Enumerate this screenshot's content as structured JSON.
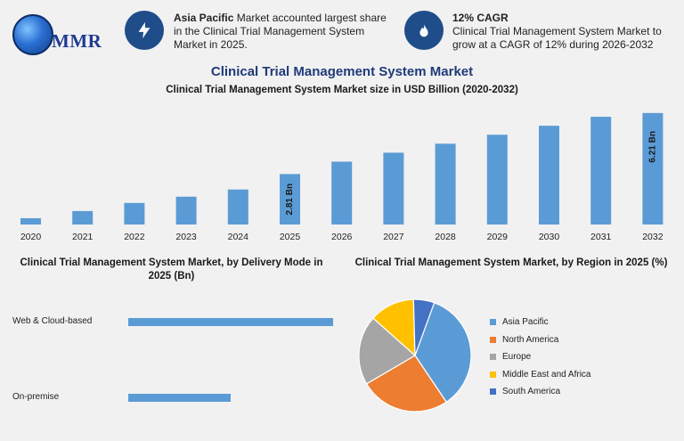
{
  "header": {
    "logo_text": "MMR",
    "info1": {
      "bold": "Asia Pacific",
      "text": " Market accounted largest share in the Clinical Trial Management System Market in 2025."
    },
    "info2": {
      "bold": "12% CAGR",
      "text": "Clinical Trial Management System Market to grow at a CAGR of 12% during 2026-2032"
    }
  },
  "titles": {
    "main": "Clinical Trial Management System Market",
    "sub": "Clinical Trial Management System Market size in USD Billion (2020-2032)",
    "delivery": "Clinical Trial Management System Market, by Delivery Mode in 2025 (Bn)",
    "region": "Clinical Trial Management System Market, by Region in 2025 (%)"
  },
  "colors": {
    "bar": "#5b9bd5",
    "accent": "#1f4d8a"
  },
  "chart_data": [
    {
      "type": "bar",
      "title": "Clinical Trial Management System Market size in USD Billion (2020-2032)",
      "categories": [
        "2020",
        "2021",
        "2022",
        "2023",
        "2024",
        "2025",
        "2026",
        "2027",
        "2028",
        "2029",
        "2030",
        "2031",
        "2032"
      ],
      "values": [
        0.35,
        0.75,
        1.2,
        1.55,
        1.95,
        2.81,
        3.5,
        4.0,
        4.5,
        5.0,
        5.5,
        6.0,
        6.21
      ],
      "data_labels": [
        {
          "index": 5,
          "text": "2.81 Bn"
        },
        {
          "index": 12,
          "text": "6.21 Bn"
        }
      ],
      "ylim": [
        0,
        6.5
      ]
    },
    {
      "type": "bar",
      "orientation": "horizontal",
      "title": "Clinical Trial Management System Market, by Delivery Mode in 2025 (Bn)",
      "categories": [
        "Web & Cloud-based",
        "On-premise"
      ],
      "values": [
        1.8,
        0.9
      ],
      "xlim": [
        0,
        2.0
      ]
    },
    {
      "type": "pie",
      "title": "Clinical Trial Management System Market, by Region in 2025 (%)",
      "categories": [
        "Asia Pacific",
        "North America",
        "Europe",
        "Middle East and Africa",
        "South America"
      ],
      "values": [
        35,
        26,
        20,
        13,
        6
      ],
      "colors": [
        "#5b9bd5",
        "#ed7d31",
        "#a5a5a5",
        "#ffc000",
        "#4472c4"
      ],
      "legend": "right"
    }
  ]
}
